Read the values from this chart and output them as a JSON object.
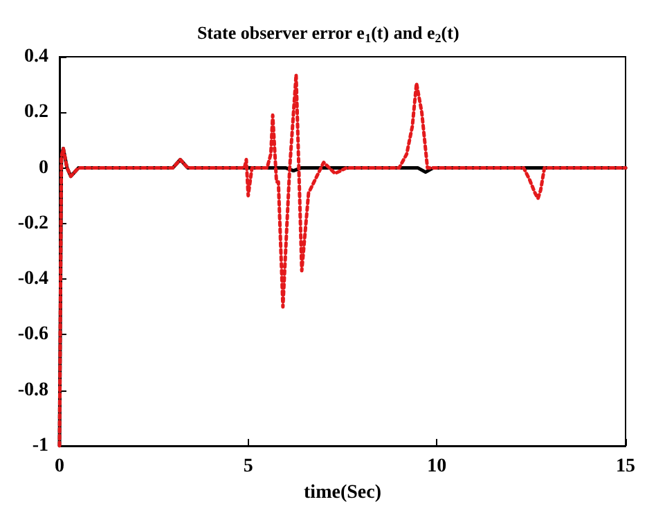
{
  "chart_data": {
    "type": "line",
    "title": "State observer error e$_{1}$(t) and e$_{2}$(t)",
    "xlabel": "time(Sec)",
    "xlim": [
      0,
      15
    ],
    "xticks": [
      0,
      5,
      10,
      15
    ],
    "ylim": [
      -1,
      0.4
    ],
    "yticks": [
      -1,
      -0.8,
      -0.6,
      -0.4,
      -0.2,
      0,
      0.2,
      0.4
    ],
    "grid": false,
    "series": [
      {
        "color": "#000000",
        "line_style": "solid",
        "x": [
          0,
          0.05,
          0.1,
          0.2,
          0.3,
          0.5,
          1,
          2,
          3,
          3.2,
          3.4,
          4,
          5,
          6,
          6.2,
          6.4,
          7,
          9,
          9.5,
          9.7,
          9.9,
          11,
          13,
          15
        ],
        "values": [
          -1,
          0.04,
          0.07,
          0.0,
          -0.03,
          0,
          0,
          0,
          0,
          0.03,
          0,
          0,
          0,
          0,
          -0.01,
          0,
          0,
          0,
          0,
          -0.015,
          0,
          0,
          0,
          0
        ]
      },
      {
        "color": "#e31a1c",
        "line_style": "dotted",
        "x": [
          0,
          0.05,
          0.1,
          0.2,
          0.3,
          0.5,
          1,
          2,
          3,
          3.2,
          3.4,
          4,
          4.9,
          4.95,
          5.0,
          5.1,
          5.5,
          5.6,
          5.65,
          5.75,
          5.8,
          5.92,
          6.1,
          6.27,
          6.42,
          6.6,
          7.0,
          7.3,
          7.6,
          8,
          9,
          9.2,
          9.35,
          9.46,
          9.6,
          9.75,
          10,
          12.3,
          12.45,
          12.6,
          12.68,
          12.75,
          12.85,
          13,
          15
        ],
        "values": [
          -1,
          0.04,
          0.07,
          0.0,
          -0.03,
          0,
          0,
          0,
          0,
          0.03,
          0,
          0,
          0,
          0.03,
          -0.1,
          0,
          0,
          0.05,
          0.19,
          -0.05,
          -0.05,
          -0.5,
          0,
          0.336,
          -0.37,
          -0.09,
          0.02,
          -0.02,
          0,
          0,
          0,
          0.05,
          0.15,
          0.305,
          0.2,
          0,
          0,
          0,
          -0.04,
          -0.09,
          -0.11,
          -0.08,
          0,
          0,
          0
        ]
      }
    ]
  }
}
